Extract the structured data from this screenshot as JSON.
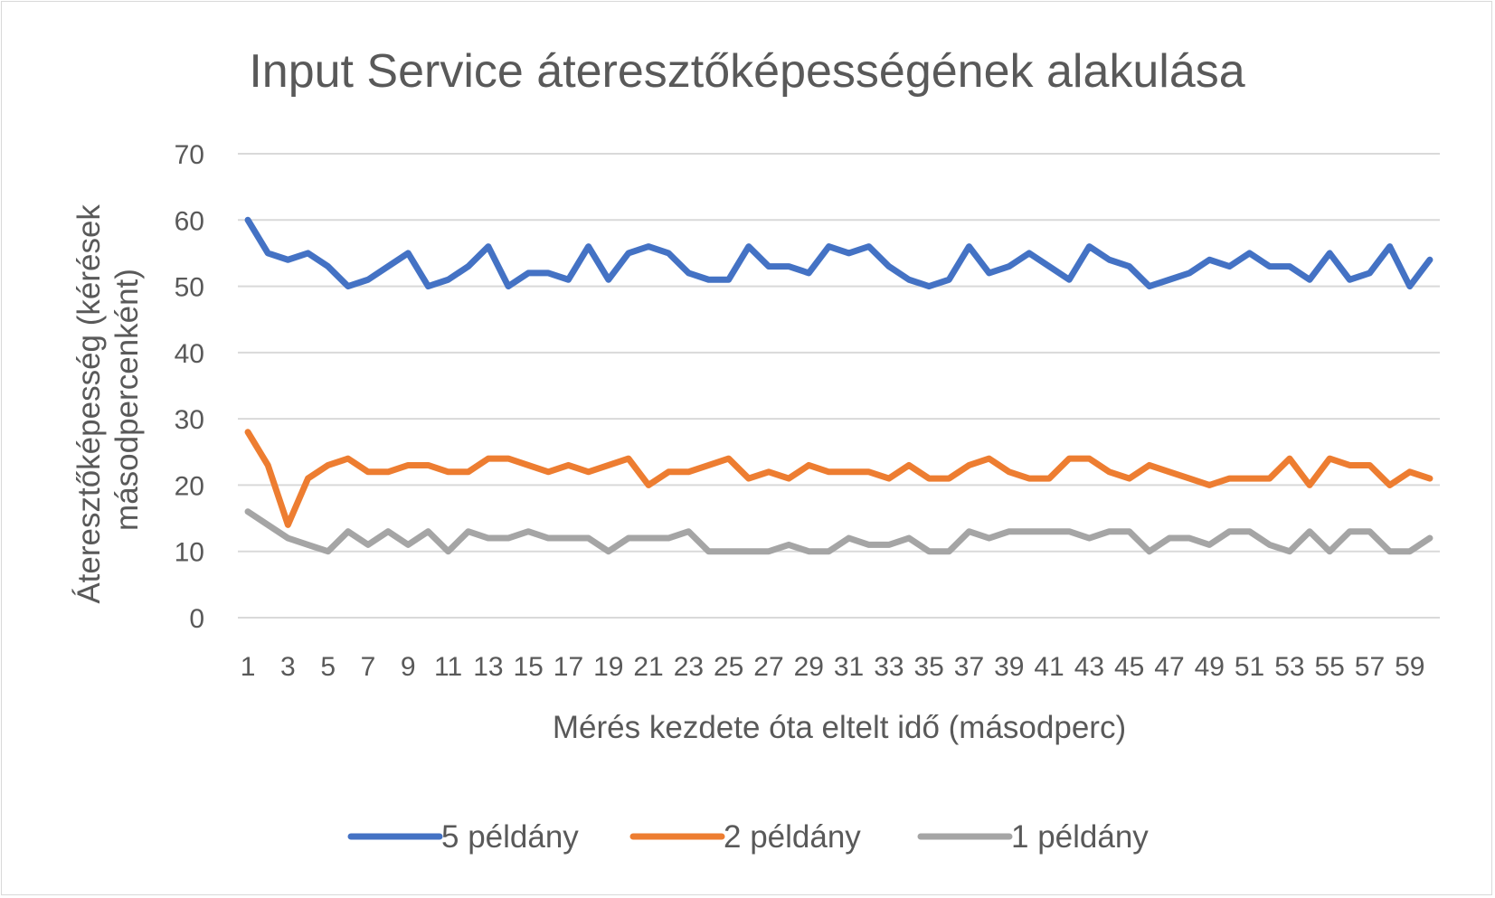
{
  "chart_data": {
    "type": "line",
    "title": "Input Service áteresztőképességének alakulása",
    "xlabel": "Mérés kezdete óta eltelt idő (másodperc)",
    "ylabel_line1": "Áteresztőképesség (kérések",
    "ylabel_line2": "másodpercenként)",
    "ylim": [
      0,
      70
    ],
    "yticks": [
      0,
      10,
      20,
      30,
      40,
      50,
      60,
      70
    ],
    "grid": true,
    "legend_position": "bottom",
    "x": [
      1,
      2,
      3,
      4,
      5,
      6,
      7,
      8,
      9,
      10,
      11,
      12,
      13,
      14,
      15,
      16,
      17,
      18,
      19,
      20,
      21,
      22,
      23,
      24,
      25,
      26,
      27,
      28,
      29,
      30,
      31,
      32,
      33,
      34,
      35,
      36,
      37,
      38,
      39,
      40,
      41,
      42,
      43,
      44,
      45,
      46,
      47,
      48,
      49,
      50,
      51,
      52,
      53,
      54,
      55,
      56,
      57,
      58,
      59,
      60
    ],
    "xtick_labels": [
      "1",
      "3",
      "5",
      "7",
      "9",
      "11",
      "13",
      "15",
      "17",
      "19",
      "21",
      "23",
      "25",
      "27",
      "29",
      "31",
      "33",
      "35",
      "37",
      "39",
      "41",
      "43",
      "45",
      "47",
      "49",
      "51",
      "53",
      "55",
      "57",
      "59"
    ],
    "series": [
      {
        "name": "5 példány",
        "color": "#4472c4",
        "values": [
          60,
          55,
          54,
          55,
          53,
          50,
          51,
          53,
          55,
          50,
          51,
          53,
          56,
          50,
          52,
          52,
          51,
          56,
          51,
          55,
          56,
          55,
          52,
          51,
          51,
          56,
          53,
          53,
          52,
          56,
          55,
          56,
          53,
          51,
          50,
          51,
          56,
          52,
          53,
          55,
          53,
          51,
          56,
          54,
          53,
          50,
          51,
          52,
          54,
          53,
          55,
          53,
          53,
          51,
          55,
          51,
          52,
          56,
          50,
          54
        ]
      },
      {
        "name": "2 példány",
        "color": "#ed7d31",
        "values": [
          28,
          23,
          14,
          21,
          23,
          24,
          22,
          22,
          23,
          23,
          22,
          22,
          24,
          24,
          23,
          22,
          23,
          22,
          23,
          24,
          20,
          22,
          22,
          23,
          24,
          21,
          22,
          21,
          23,
          22,
          22,
          22,
          21,
          23,
          21,
          21,
          23,
          24,
          22,
          21,
          21,
          24,
          24,
          22,
          21,
          23,
          22,
          21,
          20,
          21,
          21,
          21,
          24,
          20,
          24,
          23,
          23,
          20,
          22,
          21
        ]
      },
      {
        "name": "1 példány",
        "color": "#a5a5a5",
        "values": [
          16,
          14,
          12,
          11,
          10,
          13,
          11,
          13,
          11,
          13,
          10,
          13,
          12,
          12,
          13,
          12,
          12,
          12,
          10,
          12,
          12,
          12,
          13,
          10,
          10,
          10,
          10,
          11,
          10,
          10,
          12,
          11,
          11,
          12,
          10,
          10,
          13,
          12,
          13,
          13,
          13,
          13,
          12,
          13,
          13,
          10,
          12,
          12,
          11,
          13,
          13,
          11,
          10,
          13,
          10,
          13,
          13,
          10,
          10,
          12
        ]
      }
    ]
  }
}
